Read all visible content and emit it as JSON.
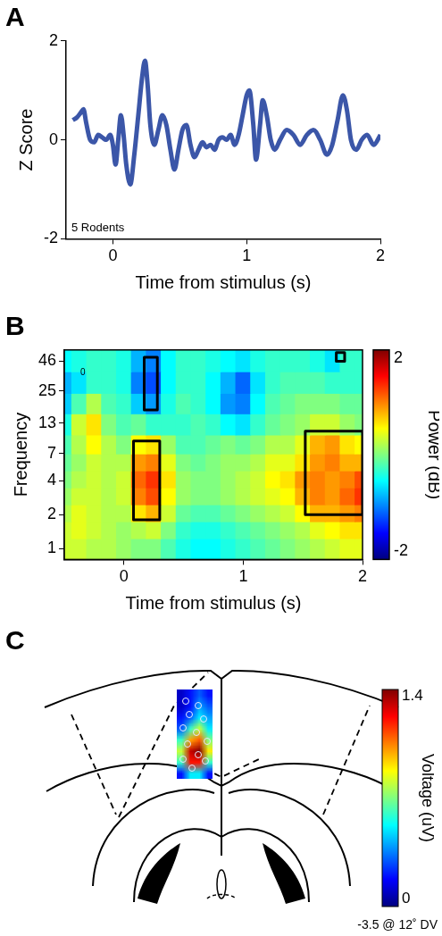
{
  "chart_data": [
    {
      "panel": "A",
      "type": "line",
      "x": [
        -0.3,
        -0.27,
        -0.24,
        -0.22,
        -0.2,
        -0.17,
        -0.14,
        -0.11,
        -0.08,
        -0.05,
        -0.02,
        0,
        0.02,
        0.04,
        0.06,
        0.08,
        0.1,
        0.13,
        0.16,
        0.19,
        0.22,
        0.24,
        0.26,
        0.28,
        0.31,
        0.34,
        0.37,
        0.4,
        0.43,
        0.46,
        0.49,
        0.52,
        0.55,
        0.58,
        0.61,
        0.64,
        0.67,
        0.7,
        0.73,
        0.76,
        0.79,
        0.82,
        0.85,
        0.88,
        0.91,
        0.94,
        0.97,
        1,
        1.02,
        1.05,
        1.07,
        1.1,
        1.12,
        1.15,
        1.18,
        1.21,
        1.25,
        1.3,
        1.35,
        1.4,
        1.45,
        1.5,
        1.55,
        1.6,
        1.64,
        1.68,
        1.72,
        1.75,
        1.78,
        1.82,
        1.86,
        1.9,
        1.95,
        2
      ],
      "values": [
        0.4,
        0.45,
        0.55,
        0.62,
        0.35,
        0,
        -0.05,
        0.1,
        0.05,
        0,
        0.1,
        -0.1,
        -0.5,
        0,
        0.5,
        0.1,
        -0.5,
        -0.9,
        -0.3,
        0.5,
        1.3,
        1.6,
        1.1,
        0.3,
        -0.1,
        0.2,
        0.5,
        0.3,
        -0.2,
        -0.6,
        -0.2,
        0.2,
        0.3,
        -0.1,
        -0.35,
        -0.2,
        -0.05,
        -0.15,
        -0.1,
        -0.2,
        0,
        0.05,
        0,
        0.1,
        -0.1,
        0.1,
        0.5,
        0.9,
        1,
        0.3,
        -0.4,
        0.3,
        0.8,
        0.5,
        0,
        -0.2,
        0,
        0.2,
        0.1,
        -0.1,
        0.1,
        0.2,
        0,
        -0.3,
        -0.1,
        0.4,
        0.9,
        0.6,
        0,
        -0.2,
        0,
        0.1,
        -0.1,
        0.1
      ],
      "color": "#3b56a8",
      "x_label": "Time from stimulus (s)",
      "y_label": "Z Score",
      "xlim": [
        -0.35,
        2
      ],
      "xticks": [
        0,
        1,
        2
      ],
      "ylim": [
        -2,
        2
      ],
      "yticks": [
        -2,
        0,
        2
      ],
      "annotation": "5 Rodents",
      "grid": false
    },
    {
      "panel": "B",
      "type": "heatmap",
      "x": [
        -0.5,
        -0.375,
        -0.25,
        -0.125,
        0,
        0.125,
        0.25,
        0.375,
        0.5,
        0.625,
        0.75,
        0.875,
        1,
        1.125,
        1.25,
        1.375,
        1.5,
        1.625,
        1.75,
        1.875,
        2
      ],
      "y": [
        1,
        1.5,
        2,
        3,
        4,
        6,
        8,
        13,
        19,
        30,
        46
      ],
      "cells": [
        [
          0.3,
          0.3,
          0.2,
          0.2,
          0.1,
          0,
          0,
          -0.2,
          -0.4,
          -0.5,
          -0.5,
          -0.4,
          -0.3,
          -0.2,
          -0.1,
          0,
          0.1,
          0.2,
          0.3,
          0.4,
          0.4
        ],
        [
          0.3,
          0.4,
          0.3,
          0.2,
          0.1,
          0.2,
          0.3,
          0,
          -0.3,
          -0.4,
          -0.4,
          -0.3,
          -0.2,
          -0.1,
          0,
          0.1,
          0.2,
          0.4,
          0.5,
          0.6,
          0.6
        ],
        [
          0.2,
          0.4,
          0.3,
          0.2,
          0.2,
          0.6,
          0.8,
          0.3,
          -0.1,
          -0.2,
          -0.2,
          -0.1,
          0,
          0.1,
          0.2,
          0.3,
          0.5,
          0.8,
          0.8,
          0.9,
          1
        ],
        [
          0.1,
          0.3,
          0.3,
          0.2,
          0.3,
          1,
          1.2,
          0.5,
          0.1,
          0,
          0,
          0.1,
          0.2,
          0.3,
          0.4,
          0.5,
          0.8,
          1,
          0.9,
          1.1,
          1.3
        ],
        [
          0,
          0.2,
          0.3,
          0.2,
          0.3,
          1.1,
          1.3,
          0.6,
          0.1,
          0,
          0,
          0.1,
          0.2,
          0.3,
          0.5,
          0.6,
          0.9,
          1,
          0.9,
          1,
          1.2
        ],
        [
          -0.1,
          0.1,
          0.3,
          0.2,
          0.2,
          0.9,
          1,
          0.4,
          0,
          -0.1,
          0,
          0.1,
          0.1,
          0.2,
          0.4,
          0.4,
          0.6,
          0.9,
          1,
          0.8,
          0.8
        ],
        [
          -0.2,
          0.2,
          0.5,
          0.2,
          0,
          0.5,
          0.6,
          0.1,
          -0.2,
          -0.2,
          -0.1,
          0,
          -0.1,
          0,
          0.2,
          0.2,
          0.4,
          0.8,
          0.9,
          0.6,
          0.5
        ],
        [
          -0.4,
          0.3,
          0.6,
          0,
          -0.2,
          -0.1,
          -0.3,
          -0.3,
          -0.3,
          -0.2,
          -0.3,
          -0.5,
          -0.6,
          -0.3,
          -0.1,
          0,
          0.1,
          0.3,
          0.3,
          0.1,
          0
        ],
        [
          -0.7,
          -0.2,
          0.2,
          -0.2,
          -0.3,
          -0.7,
          -0.9,
          -0.4,
          -0.2,
          -0.3,
          -0.5,
          -0.9,
          -1,
          -0.5,
          -0.2,
          -0.1,
          0,
          0,
          0,
          -0.1,
          -0.1
        ],
        [
          -0.8,
          -0.6,
          -0.3,
          -0.3,
          -0.4,
          -1,
          -1.2,
          -0.5,
          -0.3,
          -0.3,
          -0.5,
          -0.8,
          -1.1,
          -0.6,
          -0.3,
          -0.2,
          -0.2,
          -0.2,
          -0.3,
          -0.3,
          -0.3
        ],
        [
          -0.5,
          -0.4,
          -0.3,
          -0.3,
          -0.4,
          -0.8,
          -1,
          -0.5,
          -0.3,
          -0.3,
          -0.4,
          -0.5,
          -0.6,
          -0.4,
          -0.3,
          -0.3,
          -0.3,
          -0.4,
          -0.6,
          -0.3,
          -0.3
        ]
      ],
      "significant_regions": [
        {
          "x": [
            0.08,
            0.3
          ],
          "y": [
            1.8,
            9
          ]
        },
        {
          "x": [
            0.17,
            0.28
          ],
          "y": [
            17,
            50
          ]
        },
        {
          "x": [
            1.52,
            2
          ],
          "y": [
            2,
            11
          ]
        },
        {
          "x": [
            1.78,
            1.85
          ],
          "y": [
            46,
            55
          ]
        }
      ],
      "x_label": "Time from stimulus (s)",
      "y_label": "Frequency",
      "xlim": [
        -0.5,
        2
      ],
      "xticks": [
        0,
        1,
        2
      ],
      "ylim": [
        0.8,
        58
      ],
      "yticks": [
        1,
        2,
        4,
        7,
        13,
        25,
        46
      ],
      "log": "y",
      "colorbar": {
        "label": "Power (dB)",
        "range": [
          -2,
          2
        ],
        "ticks": [
          -2,
          2
        ]
      },
      "annotation": "0",
      "grid": false
    },
    {
      "panel": "C",
      "type": "heatmap",
      "cells": [
        [
          0.1,
          0.2,
          0.3,
          0.2
        ],
        [
          0.1,
          0.2,
          0.4,
          0.3
        ],
        [
          0.2,
          0.3,
          0.5,
          0.4
        ],
        [
          0.3,
          0.6,
          0.8,
          0.5
        ],
        [
          0.6,
          1,
          1.1,
          0.7
        ],
        [
          0.8,
          1.3,
          1.4,
          0.9
        ],
        [
          0.6,
          1.2,
          1.2,
          0.6
        ],
        [
          0.2,
          0.5,
          0.5,
          0.2
        ]
      ],
      "colorbar": {
        "label": "Voltage (uV)",
        "range": [
          0,
          1.4
        ],
        "ticks": [
          0,
          1.4
        ]
      },
      "annotation": "-3.5 @ 12˚ DV"
    }
  ]
}
